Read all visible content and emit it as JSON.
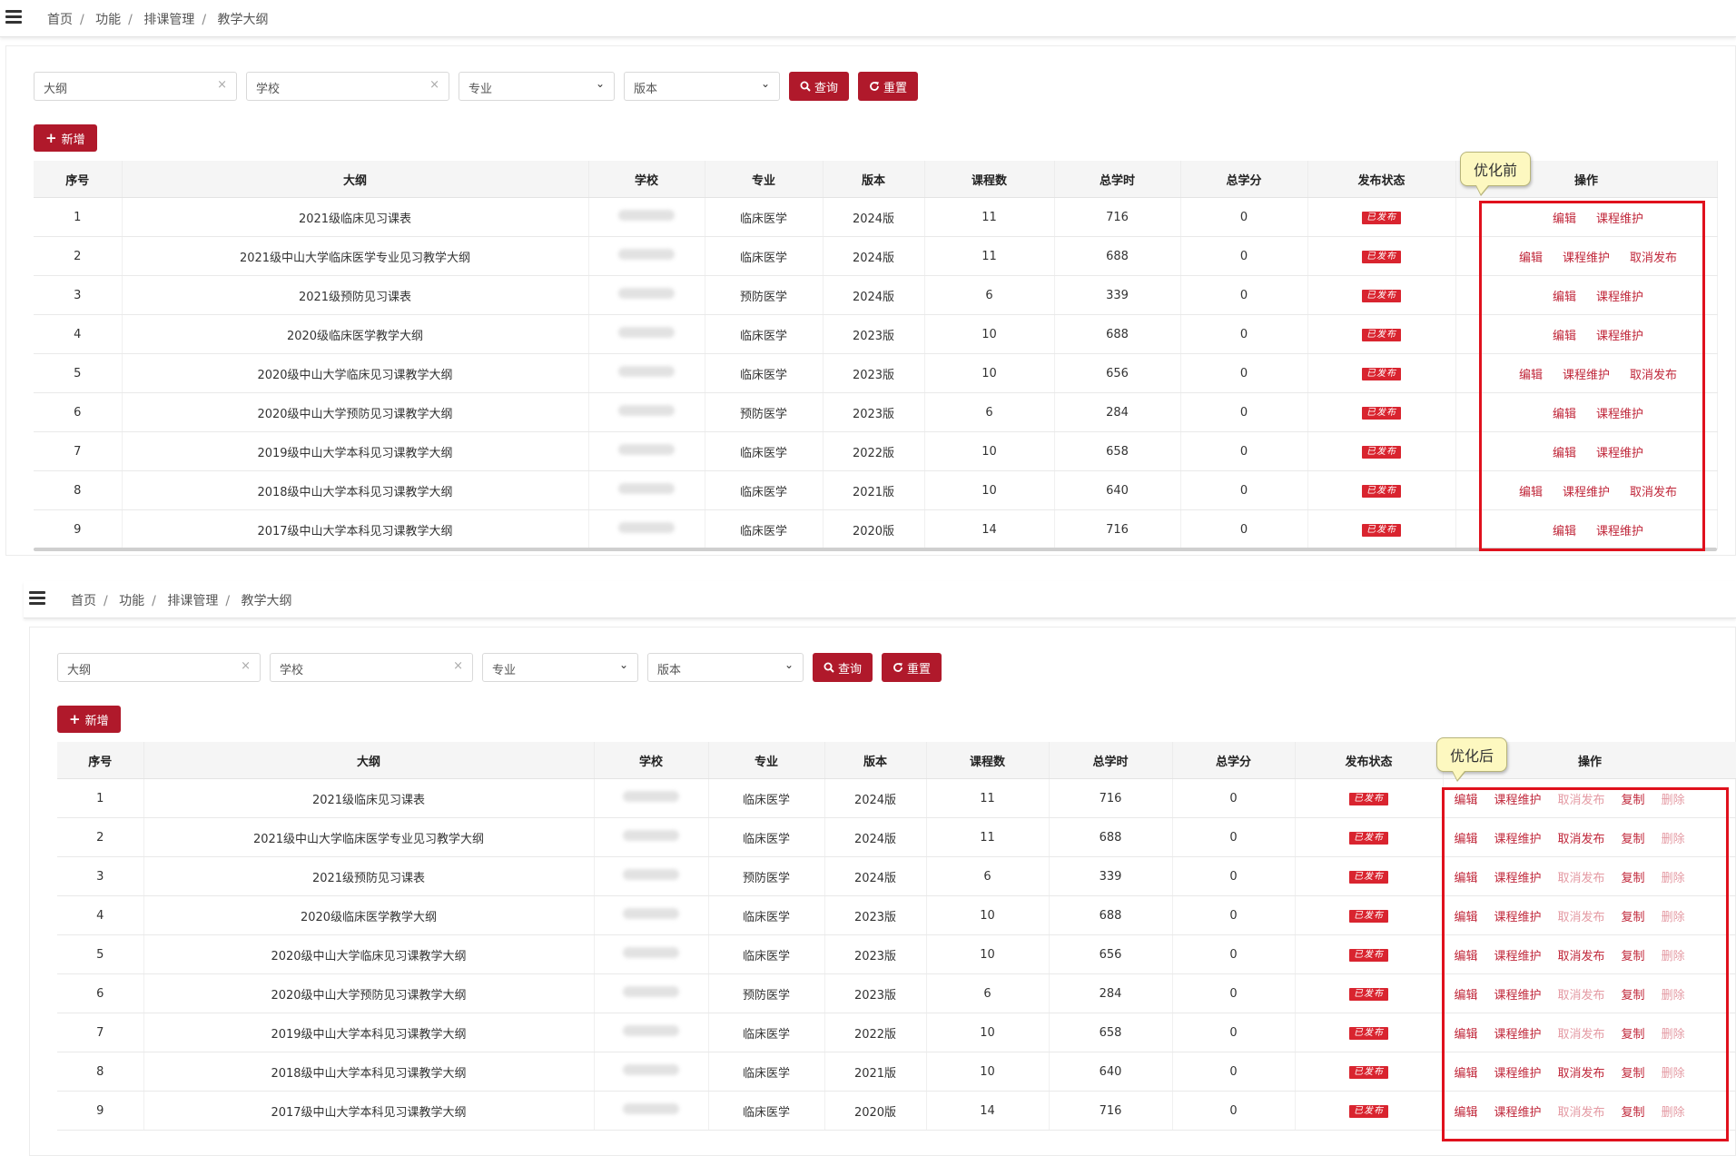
{
  "breadcrumb": [
    "首页",
    "功能",
    "排课管理",
    "教学大纲"
  ],
  "filters": {
    "syllabus_placeholder": "大纲",
    "school_placeholder": "学校",
    "major_select": "专业",
    "version_select": "版本",
    "clear_glyph": "×",
    "arrow_glyph": "⌄",
    "search_label": "查询",
    "reset_label": "重置"
  },
  "add_label": "新增",
  "columns": [
    "序号",
    "大纲",
    "学校",
    "专业",
    "版本",
    "课程数",
    "总学时",
    "总学分",
    "发布状态",
    "操作"
  ],
  "status_label": "已发布",
  "rows": [
    {
      "no": "1",
      "name": "2021级临床见习课表",
      "major": "临床医学",
      "version": "2024版",
      "courses": "11",
      "hours": "716",
      "credits": "0"
    },
    {
      "no": "2",
      "name": "2021级中山大学临床医学专业见习教学大纲",
      "major": "临床医学",
      "version": "2024版",
      "courses": "11",
      "hours": "688",
      "credits": "0"
    },
    {
      "no": "3",
      "name": "2021级预防见习课表",
      "major": "预防医学",
      "version": "2024版",
      "courses": "6",
      "hours": "339",
      "credits": "0"
    },
    {
      "no": "4",
      "name": "2020级临床医学教学大纲",
      "major": "临床医学",
      "version": "2023版",
      "courses": "10",
      "hours": "688",
      "credits": "0"
    },
    {
      "no": "5",
      "name": "2020级中山大学临床见习课教学大纲",
      "major": "临床医学",
      "version": "2023版",
      "courses": "10",
      "hours": "656",
      "credits": "0"
    },
    {
      "no": "6",
      "name": "2020级中山大学预防见习课教学大纲",
      "major": "预防医学",
      "version": "2023版",
      "courses": "6",
      "hours": "284",
      "credits": "0"
    },
    {
      "no": "7",
      "name": "2019级中山大学本科见习课教学大纲",
      "major": "临床医学",
      "version": "2022版",
      "courses": "10",
      "hours": "658",
      "credits": "0"
    },
    {
      "no": "8",
      "name": "2018级中山大学本科见习课教学大纲",
      "major": "临床医学",
      "version": "2021版",
      "courses": "10",
      "hours": "640",
      "credits": "0"
    },
    {
      "no": "9",
      "name": "2017级中山大学本科见习课教学大纲",
      "major": "临床医学",
      "version": "2020版",
      "courses": "14",
      "hours": "716",
      "credits": "0"
    }
  ],
  "ops": {
    "edit": "编辑",
    "maintain": "课程维护",
    "unpublish": "取消发布",
    "copy": "复制",
    "delete": "删除"
  },
  "before": {
    "callout": "优化前",
    "row_ops": [
      [
        "edit",
        "maintain"
      ],
      [
        "edit",
        "maintain",
        "unpublish"
      ],
      [
        "edit",
        "maintain"
      ],
      [
        "edit",
        "maintain"
      ],
      [
        "edit",
        "maintain",
        "unpublish"
      ],
      [
        "edit",
        "maintain"
      ],
      [
        "edit",
        "maintain"
      ],
      [
        "edit",
        "maintain",
        "unpublish"
      ],
      [
        "edit",
        "maintain"
      ]
    ]
  },
  "after": {
    "callout": "优化后",
    "unpublish_enabled": [
      false,
      true,
      false,
      false,
      true,
      false,
      false,
      true,
      false
    ]
  },
  "colors": {
    "brand": "#b0192b",
    "op_text": "#c0273a",
    "op_disabled": "#e49aa3",
    "highlight": "#e0111d"
  }
}
